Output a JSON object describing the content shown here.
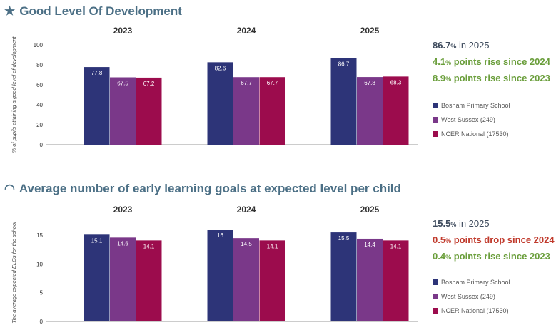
{
  "colors": {
    "school": "#2d3478",
    "county": "#7a3889",
    "national": "#9c0c4d",
    "title": "#4b6f85",
    "up": "#6a9e3b",
    "down": "#c0392b"
  },
  "sections": [
    {
      "title": "Good Level Of Development",
      "icon": "star-icon",
      "icon_glyph": "★",
      "ylabel": "% of pupils attaining a good level of development",
      "stats": [
        {
          "value": "86.7",
          "unit": "%",
          "text": " in 2025",
          "style": "big"
        },
        {
          "value": "4.1",
          "unit": "%",
          "text": " points rise since 2024",
          "style": "up"
        },
        {
          "value": "8.9",
          "unit": "%",
          "text": " points rise since 2023",
          "style": "up"
        }
      ]
    },
    {
      "title": "Average number of early learning goals at expected level per child",
      "icon": "gauge-icon",
      "icon_glyph": "◠",
      "ylabel": "The average expected ELGs for the school",
      "stats": [
        {
          "value": "15.5",
          "unit": "%",
          "text": " in 2025",
          "style": "big"
        },
        {
          "value": "0.5",
          "unit": "%",
          "text": " points drop since 2024",
          "style": "down"
        },
        {
          "value": "0.4",
          "unit": "%",
          "text": " points rise since 2023",
          "style": "up"
        }
      ]
    }
  ],
  "legend": [
    "Bosham Primary School",
    "West Sussex (249)",
    "NCER National (17530)"
  ],
  "chart_data": [
    {
      "type": "bar",
      "categories": [
        "2023",
        "2024",
        "2025"
      ],
      "series": [
        {
          "name": "Bosham Primary School",
          "values": [
            77.8,
            82.6,
            86.7
          ]
        },
        {
          "name": "West Sussex (249)",
          "values": [
            67.5,
            67.7,
            67.8
          ]
        },
        {
          "name": "NCER National (17530)",
          "values": [
            67.2,
            67.7,
            68.3
          ]
        }
      ],
      "title": "Good Level Of Development",
      "ylabel": "% of pupils attaining a good level of development",
      "ylim": [
        0,
        100
      ],
      "yticks": [
        0,
        20,
        40,
        60,
        80,
        100
      ],
      "grid": false,
      "legend_position": "right"
    },
    {
      "type": "bar",
      "categories": [
        "2023",
        "2024",
        "2025"
      ],
      "series": [
        {
          "name": "Bosham Primary School",
          "values": [
            15.1,
            16,
            15.5
          ]
        },
        {
          "name": "West Sussex (249)",
          "values": [
            14.6,
            14.5,
            14.4
          ]
        },
        {
          "name": "NCER National (17530)",
          "values": [
            14.1,
            14.1,
            14.1
          ]
        }
      ],
      "title": "Average number of early learning goals at expected level per child",
      "ylabel": "The average expected ELGs for the school",
      "ylim": [
        0,
        17
      ],
      "yticks": [
        0,
        5,
        10,
        15
      ],
      "grid": false,
      "legend_position": "right"
    }
  ]
}
